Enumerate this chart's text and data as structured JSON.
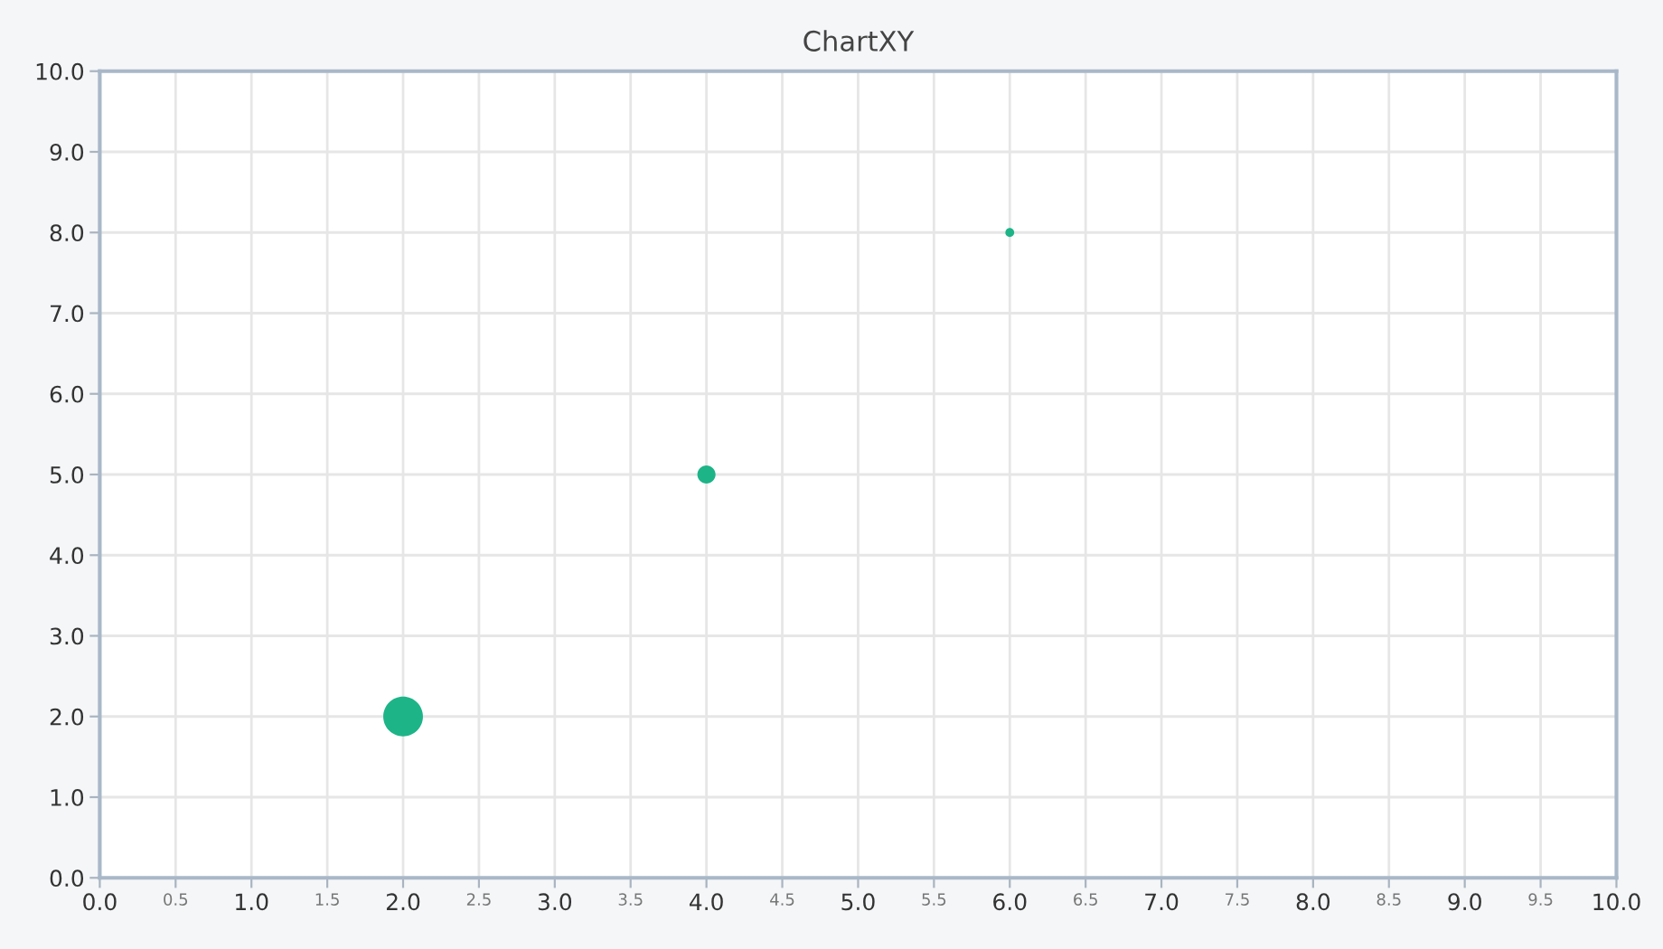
{
  "chart_data": {
    "type": "bubble",
    "title": "ChartXY",
    "x": [
      2.0,
      4.0,
      6.0
    ],
    "series": [
      {
        "color": "#1db488",
        "values": [
          2.0,
          5.0,
          8.0
        ],
        "sizes": [
          1,
          0.21,
          0.05
        ]
      }
    ],
    "xlim": [
      0,
      10
    ],
    "ylim": [
      0,
      10
    ],
    "xticks": [
      {
        "value": 0,
        "label": "0.0"
      },
      {
        "value": 0.5,
        "label": "0.5"
      },
      {
        "value": 1,
        "label": "1.0"
      },
      {
        "value": 1.5,
        "label": "1.5"
      },
      {
        "value": 2,
        "label": "2.0"
      },
      {
        "value": 2.5,
        "label": "2.5"
      },
      {
        "value": 3,
        "label": "3.0"
      },
      {
        "value": 3.5,
        "label": "3.5"
      },
      {
        "value": 4,
        "label": "4.0"
      },
      {
        "value": 4.5,
        "label": "4.5"
      },
      {
        "value": 5,
        "label": "5.0"
      },
      {
        "value": 5.5,
        "label": "5.5"
      },
      {
        "value": 6,
        "label": "6.0"
      },
      {
        "value": 6.5,
        "label": "6.5"
      },
      {
        "value": 7,
        "label": "7.0"
      },
      {
        "value": 7.5,
        "label": "7.5"
      },
      {
        "value": 8,
        "label": "8.0"
      },
      {
        "value": 8.5,
        "label": "8.5"
      },
      {
        "value": 9,
        "label": "9.0"
      },
      {
        "value": 9.5,
        "label": "9.5"
      },
      {
        "value": 10,
        "label": "10.0"
      }
    ],
    "yticks": [
      {
        "value": 0,
        "label": "0.0"
      },
      {
        "value": 1,
        "label": "1.0"
      },
      {
        "value": 2,
        "label": "2.0"
      },
      {
        "value": 3,
        "label": "3.0"
      },
      {
        "value": 4,
        "label": "4.0"
      },
      {
        "value": 5,
        "label": "5.0"
      },
      {
        "value": 6,
        "label": "6.0"
      },
      {
        "value": 7,
        "label": "7.0"
      },
      {
        "value": 8,
        "label": "8.0"
      },
      {
        "value": 9,
        "label": "9.0"
      },
      {
        "value": 10,
        "label": "10.0"
      }
    ],
    "grid": true
  }
}
